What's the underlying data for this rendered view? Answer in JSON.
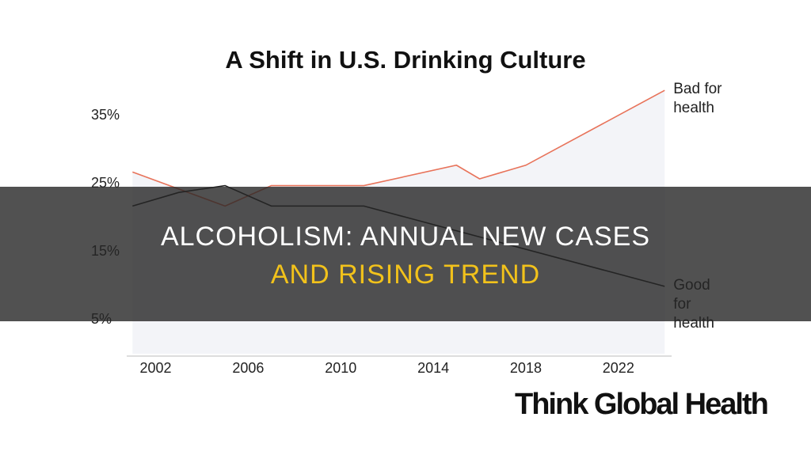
{
  "chart_data": {
    "type": "line",
    "title": "A Shift in U.S. Drinking Culture",
    "xlim": [
      2000.75,
      2024.3
    ],
    "xticks": [
      2002,
      2006,
      2010,
      2014,
      2018,
      2022
    ],
    "ylim": [
      0,
      40
    ],
    "yticks": [
      {
        "value": 5,
        "label": "5%"
      },
      {
        "value": 15,
        "label": "15%"
      },
      {
        "value": 25,
        "label": "25%"
      },
      {
        "value": 35,
        "label": "35%"
      }
    ],
    "series": [
      {
        "name": "Bad for health",
        "color": "#e8735a",
        "area_color": "#f3f4f8",
        "x": [
          2001,
          2005,
          2007,
          2011,
          2015,
          2016,
          2018,
          2024
        ],
        "values": [
          26.7,
          21.7,
          24.7,
          24.7,
          27.7,
          25.7,
          27.7,
          38.7
        ]
      },
      {
        "name": "Good for health",
        "color": "#222222",
        "x": [
          2001,
          2003,
          2005,
          2007,
          2011,
          2024
        ],
        "values": [
          21.7,
          23.7,
          24.7,
          21.7,
          21.7,
          9.9
        ]
      }
    ]
  },
  "overlay": {
    "line1": "ALCOHOLISM: ANNUAL NEW CASES",
    "line2": "AND RISING TREND"
  },
  "logo": "Think Global Health"
}
